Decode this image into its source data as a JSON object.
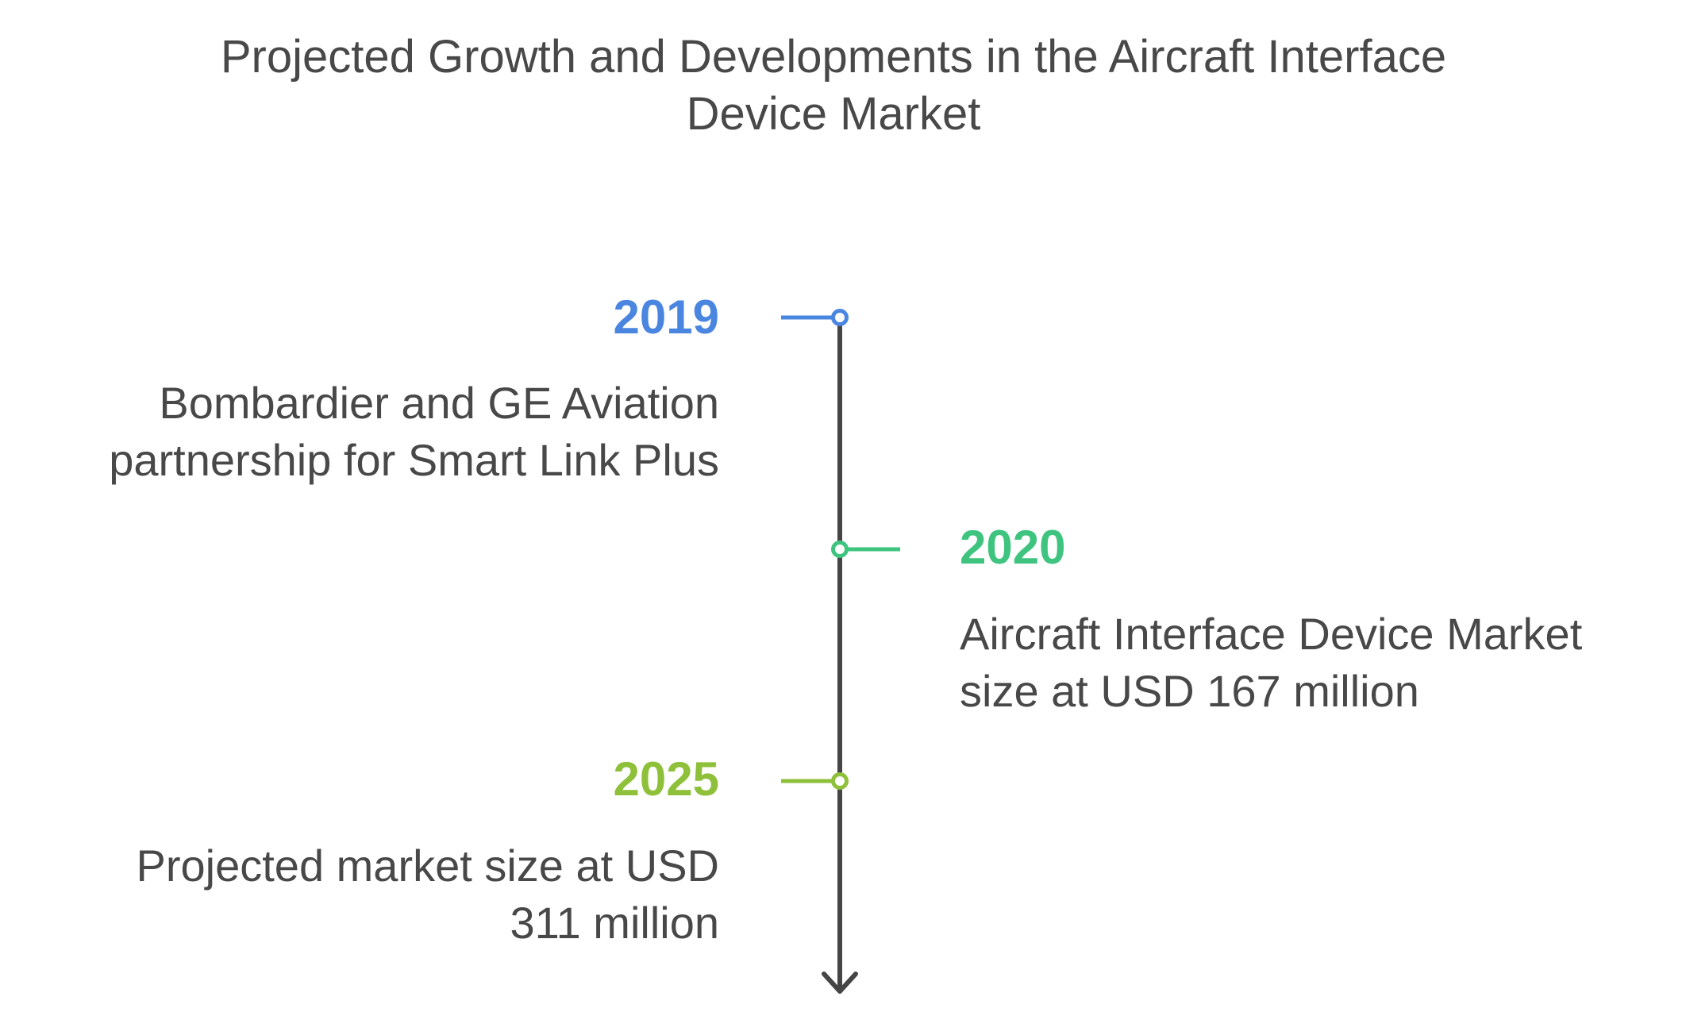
{
  "title": {
    "line1": "Projected Growth and Developments in the Aircraft Interface",
    "line2": "Device Market"
  },
  "colors": {
    "axis": "#454545",
    "text": "#484848",
    "event_2019": "#4A86E0",
    "event_2020": "#3EC47F",
    "event_2025": "#8EC03A"
  },
  "events": [
    {
      "year": "2019",
      "side": "left",
      "desc_line1": "Bombardier and GE Aviation",
      "desc_line2": "partnership for Smart Link Plus",
      "color": "#4A86E0"
    },
    {
      "year": "2020",
      "side": "right",
      "desc_line1": "Aircraft Interface Device Market",
      "desc_line2": "size at USD 167 million",
      "color": "#3EC47F"
    },
    {
      "year": "2025",
      "side": "left",
      "desc_line1": "Projected market size at USD",
      "desc_line2": "311 million",
      "color": "#8EC03A"
    }
  ],
  "axis_icon": "arrow-down-icon"
}
